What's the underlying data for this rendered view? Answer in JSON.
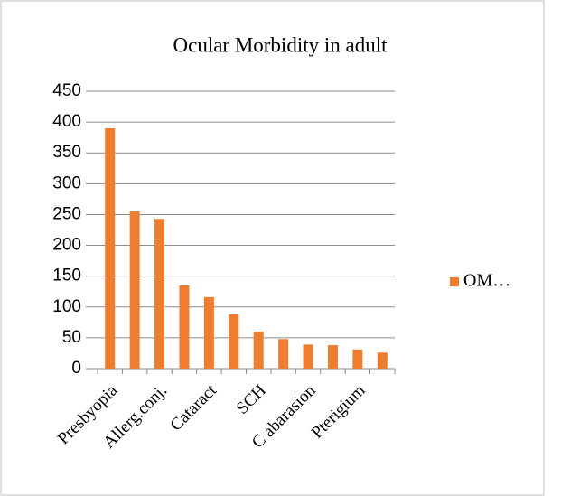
{
  "chart_data": {
    "type": "bar",
    "title": "Ocular Morbidity in adult",
    "categories": [
      "Presbyopia",
      null,
      "Allerg.conj.",
      null,
      "Cataract",
      null,
      "SCH",
      null,
      "C abarasion",
      null,
      "Pterigium",
      null
    ],
    "series": [
      {
        "name": "OM…",
        "color": "#ed7d31",
        "values": [
          390,
          255,
          243,
          135,
          116,
          88,
          60,
          48,
          39,
          38,
          31,
          26
        ]
      }
    ],
    "ylim": [
      0,
      450
    ],
    "yticks": [
      0,
      50,
      100,
      150,
      200,
      250,
      300,
      350,
      400,
      450
    ],
    "grid": true,
    "legend": "right"
  }
}
